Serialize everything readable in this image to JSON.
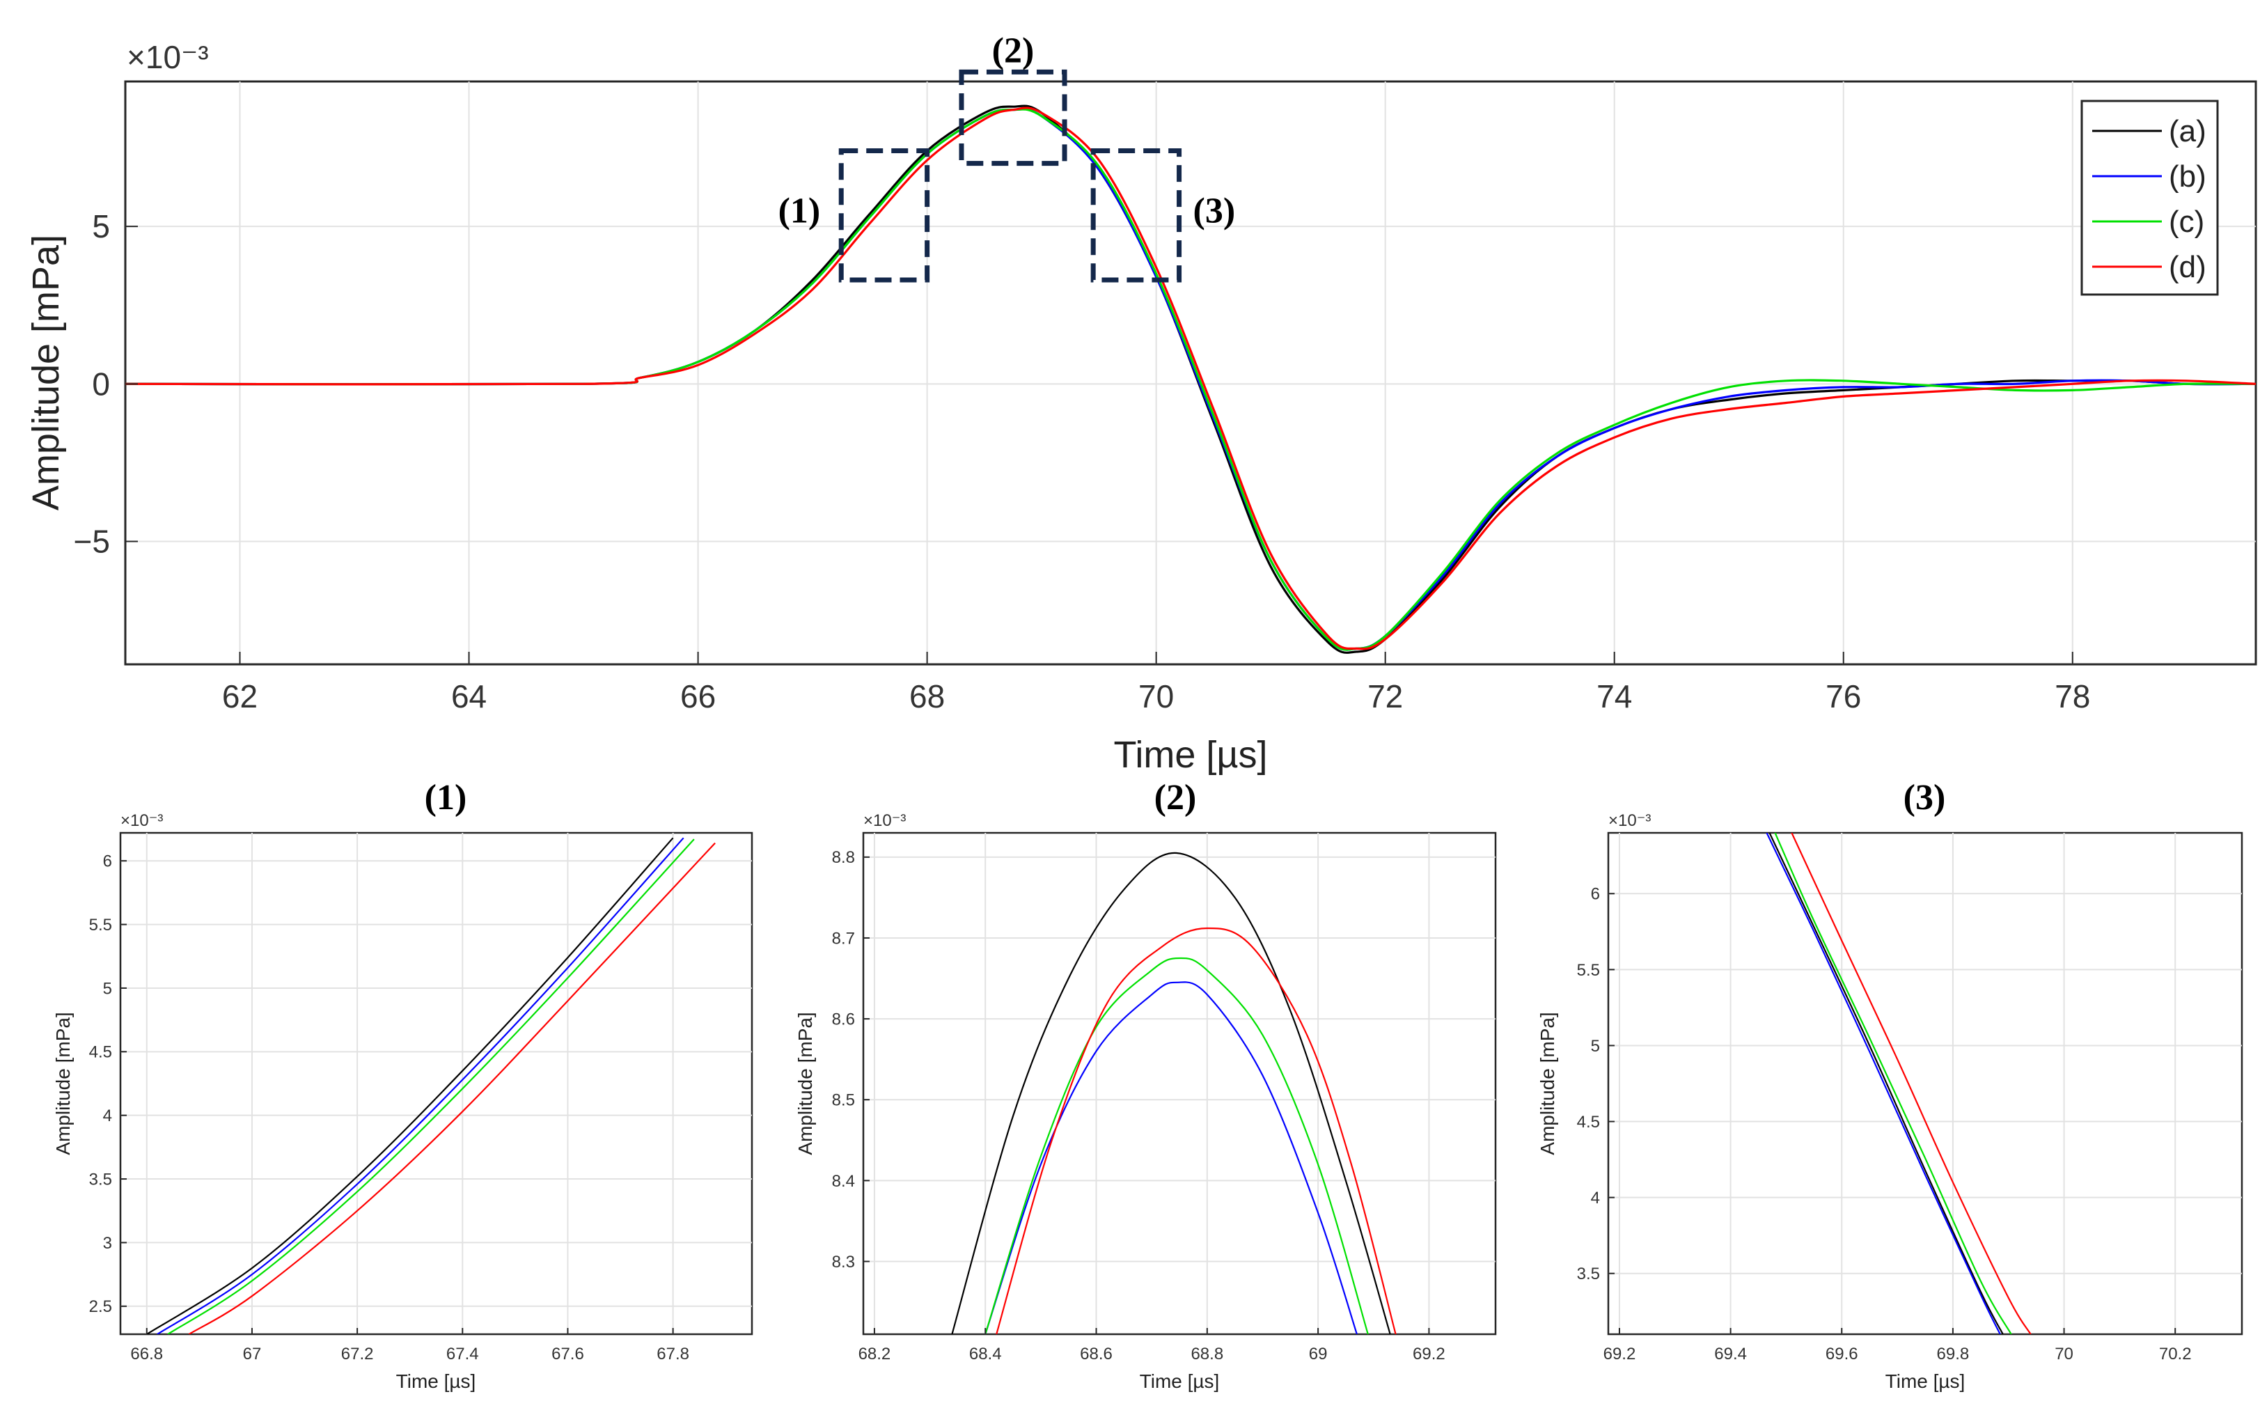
{
  "colors": {
    "a": "#000000",
    "b": "#0000ff",
    "c": "#00e000",
    "d": "#ff0000",
    "box": "#14284b",
    "grid": "#e2e2e2",
    "axis": "#262626"
  },
  "chart_data": [
    {
      "id": "main",
      "type": "line",
      "title": "",
      "xlabel": "Time [µs]",
      "ylabel": "Amplitude [mPa]",
      "exponent": "×10⁻³",
      "xlim": [
        61,
        79.6
      ],
      "ylim": [
        -0.0089,
        0.0096
      ],
      "xticks": [
        62,
        64,
        66,
        68,
        70,
        72,
        74,
        76,
        78
      ],
      "xtick_labels": [
        "62",
        "64",
        "66",
        "68",
        "70",
        "72",
        "74",
        "76",
        "78"
      ],
      "yticks": [
        -0.005,
        0,
        0.005
      ],
      "ytick_labels": [
        "−5",
        "0",
        "5"
      ],
      "legend": {
        "position": "top-right",
        "entries": [
          "(a)",
          "(b)",
          "(c)",
          "(d)"
        ]
      },
      "annotations": [
        {
          "label": "(1)",
          "x": [
            67.25,
            68.0
          ],
          "y": [
            0.0033,
            0.0074
          ]
        },
        {
          "label": "(2)",
          "x": [
            68.3,
            69.2
          ],
          "y": [
            0.007,
            0.0099
          ]
        },
        {
          "label": "(3)",
          "x": [
            69.45,
            70.2
          ],
          "y": [
            0.0033,
            0.0074
          ]
        }
      ],
      "series": [
        {
          "name": "(a)",
          "x": [
            61,
            65,
            65.5,
            66,
            66.5,
            67,
            67.5,
            68,
            68.5,
            68.75,
            69,
            69.5,
            70,
            70.5,
            71,
            71.5,
            71.75,
            72,
            72.5,
            73,
            73.5,
            74,
            74.5,
            75,
            75.5,
            76,
            76.5,
            77,
            77.5,
            78,
            78.5,
            79,
            79.6
          ],
          "y": [
            0,
            0,
            0.0002,
            0.0007,
            0.0017,
            0.0033,
            0.0054,
            0.0074,
            0.0086,
            0.0088,
            0.0086,
            0.0068,
            0.0034,
            -0.0012,
            -0.0058,
            -0.0082,
            -0.0085,
            -0.0081,
            -0.0062,
            -0.0039,
            -0.0023,
            -0.0014,
            -0.0008,
            -0.0005,
            -0.0003,
            -0.0002,
            -0.0001,
            0,
            0.0001,
            0.0001,
            0.0001,
            0,
            0
          ]
        },
        {
          "name": "(b)",
          "x": [
            61,
            65,
            65.5,
            66,
            66.5,
            67,
            67.5,
            68,
            68.5,
            68.75,
            69,
            69.5,
            70,
            70.5,
            71,
            71.5,
            71.75,
            72,
            72.5,
            73,
            73.5,
            74,
            74.5,
            75,
            75.5,
            76,
            76.5,
            77,
            77.5,
            78,
            78.5,
            79,
            79.6
          ],
          "y": [
            0,
            0,
            0.0002,
            0.0007,
            0.0017,
            0.0032,
            0.0053,
            0.0073,
            0.0085,
            0.0087,
            0.0085,
            0.0068,
            0.0034,
            -0.0011,
            -0.0056,
            -0.0081,
            -0.0084,
            -0.008,
            -0.0061,
            -0.0038,
            -0.0023,
            -0.0014,
            -0.0008,
            -0.0004,
            -0.0002,
            -0.0001,
            -0.0001,
            0,
            0,
            0.0001,
            0.0001,
            0,
            0
          ]
        },
        {
          "name": "(c)",
          "x": [
            61,
            65,
            65.5,
            66,
            66.5,
            67,
            67.5,
            68,
            68.5,
            68.75,
            69,
            69.5,
            70,
            70.5,
            71,
            71.5,
            71.75,
            72,
            72.5,
            73,
            73.5,
            74,
            74.5,
            75,
            75.5,
            76,
            76.5,
            77,
            77.5,
            78,
            78.5,
            79,
            79.6
          ],
          "y": [
            0,
            0,
            0.0002,
            0.0007,
            0.0017,
            0.0032,
            0.0053,
            0.0073,
            0.0085,
            0.0087,
            0.0085,
            0.0069,
            0.0035,
            -0.001,
            -0.0056,
            -0.0081,
            -0.0084,
            -0.008,
            -0.006,
            -0.0037,
            -0.0022,
            -0.0013,
            -0.0006,
            -0.0001,
            0.0001,
            0.0001,
            0,
            -0.0001,
            -0.0002,
            -0.0002,
            -0.0001,
            0,
            0
          ]
        },
        {
          "name": "(d)",
          "x": [
            61,
            65,
            65.5,
            66,
            66.5,
            67,
            67.5,
            68,
            68.5,
            68.75,
            69,
            69.5,
            70,
            70.5,
            71,
            71.5,
            71.75,
            72,
            72.5,
            73,
            73.5,
            74,
            74.5,
            75,
            75.5,
            76,
            76.5,
            77,
            77.5,
            78,
            78.5,
            79,
            79.6
          ],
          "y": [
            0,
            0,
            0.0002,
            0.0006,
            0.0016,
            0.003,
            0.0051,
            0.0071,
            0.0084,
            0.0087,
            0.0086,
            0.0071,
            0.0037,
            -0.0008,
            -0.0054,
            -0.008,
            -0.0084,
            -0.0081,
            -0.0063,
            -0.0041,
            -0.0026,
            -0.0017,
            -0.0011,
            -0.0008,
            -0.0006,
            -0.0004,
            -0.0003,
            -0.0002,
            -0.0001,
            0,
            0.0001,
            0.0001,
            0
          ]
        }
      ]
    },
    {
      "id": "zoom1",
      "type": "line",
      "title": "(1)",
      "xlabel": "Time [µs]",
      "ylabel": "Amplitude [mPa]",
      "exponent": "×10⁻³",
      "xlim": [
        66.75,
        67.95
      ],
      "ylim": [
        0.00228,
        0.00622
      ],
      "xticks": [
        66.8,
        67,
        67.2,
        67.4,
        67.6,
        67.8
      ],
      "xtick_labels": [
        "66.8",
        "67",
        "67.2",
        "67.4",
        "67.6",
        "67.8"
      ],
      "yticks": [
        0.0025,
        0.003,
        0.0035,
        0.004,
        0.0045,
        0.005,
        0.0055,
        0.006
      ],
      "ytick_labels": [
        "2.5",
        "3",
        "3.5",
        "4",
        "4.5",
        "5",
        "5.5",
        "6"
      ],
      "series": [
        {
          "name": "(a)",
          "x": [
            66.8,
            67.0,
            67.2,
            67.4,
            67.6,
            67.8
          ],
          "y": [
            0.00228,
            0.0028,
            0.00352,
            0.00435,
            0.00524,
            0.00618
          ]
        },
        {
          "name": "(b)",
          "x": [
            66.82,
            67.0,
            67.2,
            67.4,
            67.6,
            67.82
          ],
          "y": [
            0.00228,
            0.00275,
            0.00346,
            0.00428,
            0.00516,
            0.00618
          ]
        },
        {
          "name": "(c)",
          "x": [
            66.84,
            67.0,
            67.2,
            67.4,
            67.6,
            67.84
          ],
          "y": [
            0.00228,
            0.0027,
            0.0034,
            0.00421,
            0.00508,
            0.00617
          ]
        },
        {
          "name": "(d)",
          "x": [
            66.88,
            67.0,
            67.2,
            67.4,
            67.6,
            67.88
          ],
          "y": [
            0.00228,
            0.00258,
            0.00325,
            0.00403,
            0.0049,
            0.00614
          ]
        }
      ]
    },
    {
      "id": "zoom2",
      "type": "line",
      "title": "(2)",
      "xlabel": "Time [µs]",
      "ylabel": "Amplitude [mPa]",
      "exponent": "×10⁻³",
      "xlim": [
        68.18,
        69.32
      ],
      "ylim": [
        0.00821,
        0.00883
      ],
      "xticks": [
        68.2,
        68.4,
        68.6,
        68.8,
        69,
        69.2
      ],
      "xtick_labels": [
        "68.2",
        "68.4",
        "68.6",
        "68.8",
        "69",
        "69.2"
      ],
      "yticks": [
        0.0083,
        0.0084,
        0.0085,
        0.0086,
        0.0087,
        0.0088
      ],
      "ytick_labels": [
        "8.3",
        "8.4",
        "8.5",
        "8.6",
        "8.7",
        "8.8"
      ],
      "series": [
        {
          "name": "(a)",
          "x": [
            68.34,
            68.45,
            68.55,
            68.65,
            68.745,
            68.85,
            68.95,
            69.05,
            69.13
          ],
          "y": [
            0.00821,
            0.00848,
            0.00865,
            0.00876,
            0.008805,
            0.00875,
            0.00861,
            0.0084,
            0.00821
          ]
        },
        {
          "name": "(b)",
          "x": [
            68.4,
            68.5,
            68.6,
            68.7,
            68.745,
            68.8,
            68.9,
            69.0,
            69.07
          ],
          "y": [
            0.00821,
            0.00842,
            0.00856,
            0.00863,
            0.008645,
            0.00863,
            0.00853,
            0.00836,
            0.00821
          ]
        },
        {
          "name": "(c)",
          "x": [
            68.4,
            68.5,
            68.6,
            68.7,
            68.75,
            68.8,
            68.9,
            69.0,
            69.09
          ],
          "y": [
            0.00821,
            0.00843,
            0.00859,
            0.00866,
            0.008675,
            0.00866,
            0.00858,
            0.00842,
            0.00821
          ]
        },
        {
          "name": "(d)",
          "x": [
            68.42,
            68.52,
            68.62,
            68.72,
            68.8,
            68.88,
            68.98,
            69.06,
            69.14
          ],
          "y": [
            0.00821,
            0.00845,
            0.00862,
            0.00869,
            0.008712,
            0.00869,
            0.00858,
            0.00842,
            0.00821
          ]
        }
      ]
    },
    {
      "id": "zoom3",
      "type": "line",
      "title": "(3)",
      "xlabel": "Time [µs]",
      "ylabel": "Amplitude [mPa]",
      "exponent": "×10⁻³",
      "xlim": [
        69.18,
        70.32
      ],
      "ylim": [
        0.0031,
        0.0064
      ],
      "xticks": [
        69.2,
        69.4,
        69.6,
        69.8,
        70,
        70.2
      ],
      "xtick_labels": [
        "69.2",
        "69.4",
        "69.6",
        "69.8",
        "70",
        "70.2"
      ],
      "yticks": [
        0.0035,
        0.004,
        0.0045,
        0.005,
        0.0055,
        0.006
      ],
      "ytick_labels": [
        "3.5",
        "4",
        "4.5",
        "5",
        "5.5",
        "6"
      ],
      "series": [
        {
          "name": "(a)",
          "x": [
            69.47,
            69.55,
            69.65,
            69.75,
            69.85,
            69.89
          ],
          "y": [
            0.0064,
            0.00578,
            0.005,
            0.00418,
            0.00338,
            0.0031
          ]
        },
        {
          "name": "(b)",
          "x": [
            69.465,
            69.55,
            69.65,
            69.75,
            69.85,
            69.885
          ],
          "y": [
            0.0064,
            0.00575,
            0.00496,
            0.00415,
            0.00336,
            0.0031
          ]
        },
        {
          "name": "(c)",
          "x": [
            69.48,
            69.55,
            69.65,
            69.75,
            69.85,
            69.905
          ],
          "y": [
            0.0064,
            0.00582,
            0.00505,
            0.00426,
            0.00345,
            0.0031
          ]
        },
        {
          "name": "(d)",
          "x": [
            69.51,
            69.6,
            69.7,
            69.8,
            69.9,
            69.94
          ],
          "y": [
            0.0064,
            0.00569,
            0.00491,
            0.0041,
            0.00334,
            0.0031
          ]
        }
      ]
    }
  ]
}
